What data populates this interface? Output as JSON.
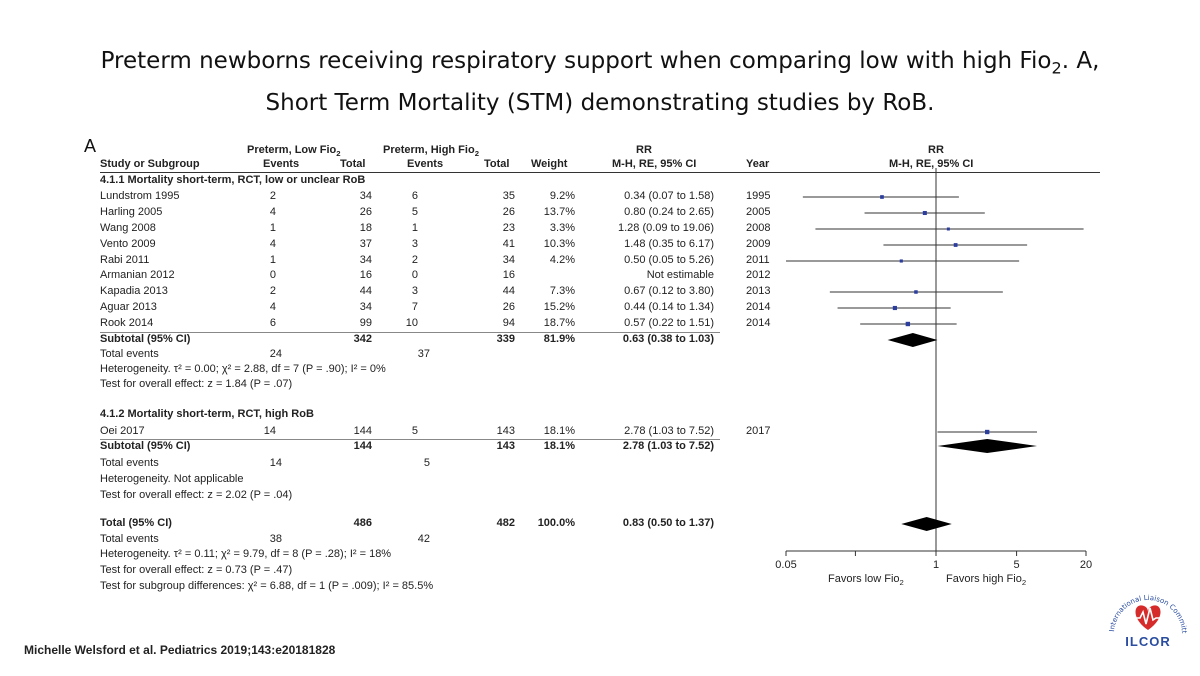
{
  "title_line1": "Preterm newborns receiving respiratory support when comparing low with high Fio",
  "title_line1_sub": "2",
  "title_line1_end": ". A,",
  "title_line2": "Short Term Mortality (STM) demonstrating studies by RoB.",
  "panel_label": "A",
  "header": {
    "low_group": "Preterm, Low Fio",
    "high_group": "Preterm, High Fio",
    "sub2": "2",
    "study": "Study or Subgroup",
    "events": "Events",
    "total": "Total",
    "weight": "Weight",
    "rr": "RR",
    "method": "M-H, RE, 95% CI",
    "year": "Year"
  },
  "subgroups": [
    {
      "label": "4.1.1 Mortality short-term, RCT, low or unclear RoB",
      "studies": [
        {
          "study": "Lundstrom 1995",
          "e1": "2",
          "t1": "34",
          "e2": "6",
          "t2": "35",
          "weight": "9.2%",
          "ci": "0.34 (0.07 to 1.58)",
          "year": "1995"
        },
        {
          "study": "Harling 2005",
          "e1": "4",
          "t1": "26",
          "e2": "5",
          "t2": "26",
          "weight": "13.7%",
          "ci": "0.80 (0.24 to 2.65)",
          "year": "2005"
        },
        {
          "study": "Wang 2008",
          "e1": "1",
          "t1": "18",
          "e2": "1",
          "t2": "23",
          "weight": "3.3%",
          "ci": "1.28 (0.09 to 19.06)",
          "year": "2008"
        },
        {
          "study": "Vento 2009",
          "e1": "4",
          "t1": "37",
          "e2": "3",
          "t2": "41",
          "weight": "10.3%",
          "ci": "1.48 (0.35 to 6.17)",
          "year": "2009"
        },
        {
          "study": "Rabi 2011",
          "e1": "1",
          "t1": "34",
          "e2": "2",
          "t2": "34",
          "weight": "4.2%",
          "ci": "0.50 (0.05 to 5.26)",
          "year": "2011"
        },
        {
          "study": "Armanian 2012",
          "e1": "0",
          "t1": "16",
          "e2": "0",
          "t2": "16",
          "weight": "",
          "ci": "Not estimable",
          "year": "2012"
        },
        {
          "study": "Kapadia 2013",
          "e1": "2",
          "t1": "44",
          "e2": "3",
          "t2": "44",
          "weight": "7.3%",
          "ci": "0.67 (0.12 to 3.80)",
          "year": "2013"
        },
        {
          "study": "Aguar 2013",
          "e1": "4",
          "t1": "34",
          "e2": "7",
          "t2": "26",
          "weight": "15.2%",
          "ci": "0.44 (0.14 to 1.34)",
          "year": "2014"
        },
        {
          "study": "Rook 2014",
          "e1": "6",
          "t1": "99",
          "e2": "10",
          "t2": "94",
          "weight": "18.7%",
          "ci": "0.57 (0.22 to 1.51)",
          "year": "2014"
        }
      ],
      "subtotal": {
        "label": "Subtotal (95% CI)",
        "t1": "342",
        "t2": "339",
        "weight": "81.9%",
        "ci": "0.63 (0.38 to 1.03)"
      },
      "total_events": {
        "label": "Total events",
        "e1": "24",
        "e2": "37"
      },
      "heterogeneity": "Heterogeneity. τ² = 0.00; χ² = 2.88, df = 7 (P = .90); I² = 0%",
      "overall": "Test for overall effect: z = 1.84 (P = .07)"
    },
    {
      "label": "4.1.2 Mortality short-term, RCT, high RoB",
      "studies": [
        {
          "study": "Oei 2017",
          "e1": "14",
          "t1": "144",
          "e2": "5",
          "t2": "143",
          "weight": "18.1%",
          "ci": "2.78 (1.03 to 7.52)",
          "year": "2017"
        }
      ],
      "subtotal": {
        "label": "Subtotal (95% CI)",
        "t1": "144",
        "t2": "143",
        "weight": "18.1%",
        "ci": "2.78 (1.03 to 7.52)"
      },
      "total_events": {
        "label": "Total events",
        "e1": "14",
        "e2": "5"
      },
      "heterogeneity": "Heterogeneity. Not applicable",
      "overall": "Test for overall effect: z = 2.02 (P = .04)"
    }
  ],
  "total": {
    "label": "Total (95% CI)",
    "t1": "486",
    "t2": "482",
    "weight": "100.0%",
    "ci": "0.83 (0.50 to 1.37)"
  },
  "total_events": {
    "label": "Total events",
    "e1": "38",
    "e2": "42"
  },
  "total_heterogeneity": "Heterogeneity. τ² = 0.11; χ² = 9.79, df = 8 (P = .28); I² = 18%",
  "total_overall": "Test for overall effect: z = 0.73 (P = .47)",
  "subgroup_diff": "Test for subgroup differences: χ² = 6.88, df = 1 (P = .009); I² = 85.5%",
  "axis": {
    "favors_low": "Favors low Fio",
    "favors_high": "Favors high Fio",
    "sub2": "2"
  },
  "citation": "Michelle Welsford et al. Pediatrics 2019;143:e20181828",
  "logo": {
    "name": "ILCOR",
    "arc_text": "International Liaison Committee on Resuscitation"
  },
  "colors": {
    "point": "#2b3d9e",
    "diamond": "#000000",
    "logo_red": "#d62b2b",
    "logo_blue": "#2a4da0"
  },
  "chart_data": {
    "type": "forest",
    "xscale": "log",
    "xlim": [
      0.05,
      20
    ],
    "xticks": [
      0.05,
      0.2,
      1,
      5,
      20
    ],
    "xtick_labels": [
      "0.05",
      "",
      "1",
      "5",
      "20"
    ],
    "studies": [
      {
        "name": "Lundstrom 1995",
        "rr": 0.34,
        "lo": 0.07,
        "hi": 1.58,
        "weight": 9.2
      },
      {
        "name": "Harling 2005",
        "rr": 0.8,
        "lo": 0.24,
        "hi": 2.65,
        "weight": 13.7
      },
      {
        "name": "Wang 2008",
        "rr": 1.28,
        "lo": 0.09,
        "hi": 19.06,
        "weight": 3.3
      },
      {
        "name": "Vento 2009",
        "rr": 1.48,
        "lo": 0.35,
        "hi": 6.17,
        "weight": 10.3
      },
      {
        "name": "Rabi 2011",
        "rr": 0.5,
        "lo": 0.05,
        "hi": 5.26,
        "weight": 4.2
      },
      {
        "name": "Kapadia 2013",
        "rr": 0.67,
        "lo": 0.12,
        "hi": 3.8,
        "weight": 7.3
      },
      {
        "name": "Aguar 2013",
        "rr": 0.44,
        "lo": 0.14,
        "hi": 1.34,
        "weight": 15.2
      },
      {
        "name": "Rook 2014",
        "rr": 0.57,
        "lo": 0.22,
        "hi": 1.51,
        "weight": 18.7
      },
      {
        "name": "Oei 2017",
        "rr": 2.78,
        "lo": 1.03,
        "hi": 7.52,
        "weight": 18.1
      }
    ],
    "subtotals": [
      {
        "name": "Subtotal 4.1.1",
        "rr": 0.63,
        "lo": 0.38,
        "hi": 1.03
      },
      {
        "name": "Subtotal 4.1.2",
        "rr": 2.78,
        "lo": 1.03,
        "hi": 7.52
      }
    ],
    "overall": {
      "name": "Total",
      "rr": 0.83,
      "lo": 0.5,
      "hi": 1.37
    }
  }
}
